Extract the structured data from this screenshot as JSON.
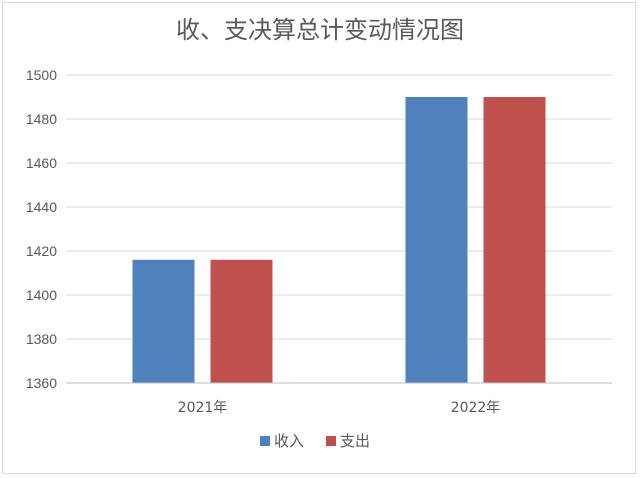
{
  "chart_data": {
    "type": "bar",
    "title": "收、支决算总计变动情况图",
    "categories": [
      "2021年",
      "2022年"
    ],
    "series": [
      {
        "name": "收入",
        "color": "#4f81bd",
        "values": [
          1416,
          1490
        ]
      },
      {
        "name": "支出",
        "color": "#c0504d",
        "values": [
          1416,
          1490
        ]
      }
    ],
    "ylim": [
      1360,
      1500
    ],
    "yticks": [
      1360,
      1380,
      1400,
      1420,
      1440,
      1460,
      1480,
      1500
    ],
    "grid": true,
    "legend_position": "bottom"
  }
}
